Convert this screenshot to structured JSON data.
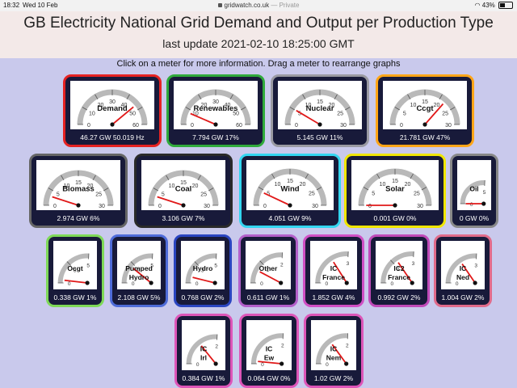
{
  "status_bar": {
    "time": "18:32",
    "date": "Wed 10 Feb",
    "url": "gridwatch.co.uk",
    "privacy": "— Private",
    "battery": "43%"
  },
  "header": {
    "title": "GB Electricity National Grid Demand and Output per Production Type",
    "last_update": "last update 2021-02-10 18:25:00 GMT",
    "hint": "Click on a meter for more information. Drag a meter to rearrange graphs"
  },
  "colors": {
    "background": "#c9c9ec",
    "banner": "#f3e9e8",
    "needle": "#e01818"
  },
  "meters": [
    {
      "name": "Demand",
      "value": "46.27 GW 50.019 Hz",
      "border": "#e52222",
      "ticks": [
        "0",
        "10",
        "20",
        "30",
        "40",
        "50",
        "60"
      ],
      "level": 0.78
    },
    {
      "name": "Renewables",
      "value": "7.794 GW 17%",
      "border": "#2faa3b",
      "ticks": [
        "0",
        "10",
        "20",
        "30",
        "40",
        "50",
        "60"
      ],
      "level": 0.13
    },
    {
      "name": "Nuclear",
      "value": "5.145 GW 11%",
      "border": "#9a9aa2",
      "ticks": [
        "0",
        "5",
        "10",
        "15",
        "20",
        "25",
        "30"
      ],
      "level": 0.17
    },
    {
      "name": "Ccgt",
      "value": "21.781 GW 47%",
      "border": "#ffa517",
      "ticks": [
        "0",
        "5",
        "10",
        "15",
        "20",
        "25",
        "30"
      ],
      "level": 0.73
    },
    {
      "name": "Biomass",
      "value": "2.974 GW 6%",
      "border": "#666666",
      "ticks": [
        "0",
        "5",
        "10",
        "15",
        "20",
        "25",
        "30"
      ],
      "level": 0.1
    },
    {
      "name": "Coal",
      "value": "3.106 GW 7%",
      "border": "#2a2a2a",
      "ticks": [
        "0",
        "5",
        "10",
        "15",
        "20",
        "25",
        "30"
      ],
      "level": 0.1
    },
    {
      "name": "Wind",
      "value": "4.051 GW 9%",
      "border": "#33d6f0",
      "ticks": [
        "0",
        "5",
        "10",
        "15",
        "20",
        "25",
        "30"
      ],
      "level": 0.14
    },
    {
      "name": "Solar",
      "value": "0.001 GW 0%",
      "border": "#f0e600",
      "ticks": [
        "0",
        "5",
        "10",
        "15",
        "20",
        "25",
        "30"
      ],
      "level": 0.0
    },
    {
      "name": "Oil",
      "value": "0 GW 0%",
      "border": "#888888",
      "ticks": [
        "0",
        "5"
      ],
      "level": 0.0
    },
    {
      "name": "Ocgt",
      "value": "0.338 GW 1%",
      "border": "#7ed957",
      "ticks": [
        "0",
        "3",
        "5"
      ],
      "level": 0.07
    },
    {
      "name": "Pumped Hydro",
      "value": "2.108 GW 5%",
      "border": "#4e6bd8",
      "ticks": [
        "0",
        "3",
        "5"
      ],
      "level": 0.42
    },
    {
      "name": "Hydro",
      "value": "0.768 GW 2%",
      "border": "#2a45c0",
      "ticks": [
        "0",
        "3",
        "5"
      ],
      "level": 0.15
    },
    {
      "name": "Other",
      "value": "0.611 GW 1%",
      "border": "#b25fc9",
      "ticks": [
        "0",
        "1",
        "2"
      ],
      "level": 0.3
    },
    {
      "name": "IC France",
      "value": "1.852 GW 4%",
      "border": "#d04fc4",
      "ticks": [
        "0",
        "3"
      ],
      "level": 0.62
    },
    {
      "name": "IC2 France",
      "value": "0.992 GW 2%",
      "border": "#c04ab8",
      "ticks": [
        "0",
        "1",
        "3"
      ],
      "level": 0.6
    },
    {
      "name": "IC Ned",
      "value": "1.004 GW 2%",
      "border": "#e06a8a",
      "ticks": [
        "0",
        "3"
      ],
      "level": 0.6
    },
    {
      "name": "IC Irl",
      "value": "0.384 GW 1%",
      "border": "#dd55b8",
      "ticks": [
        "0",
        "2"
      ],
      "level": 0.55
    },
    {
      "name": "IC Ew",
      "value": "0.064 GW 0%",
      "border": "#dd55b8",
      "ticks": [
        "0",
        "2"
      ],
      "level": 0.06
    },
    {
      "name": "IC Nem",
      "value": "1.02 GW 2%",
      "border": "#dd55b8",
      "ticks": [
        "0",
        "2"
      ],
      "level": 0.58
    }
  ]
}
